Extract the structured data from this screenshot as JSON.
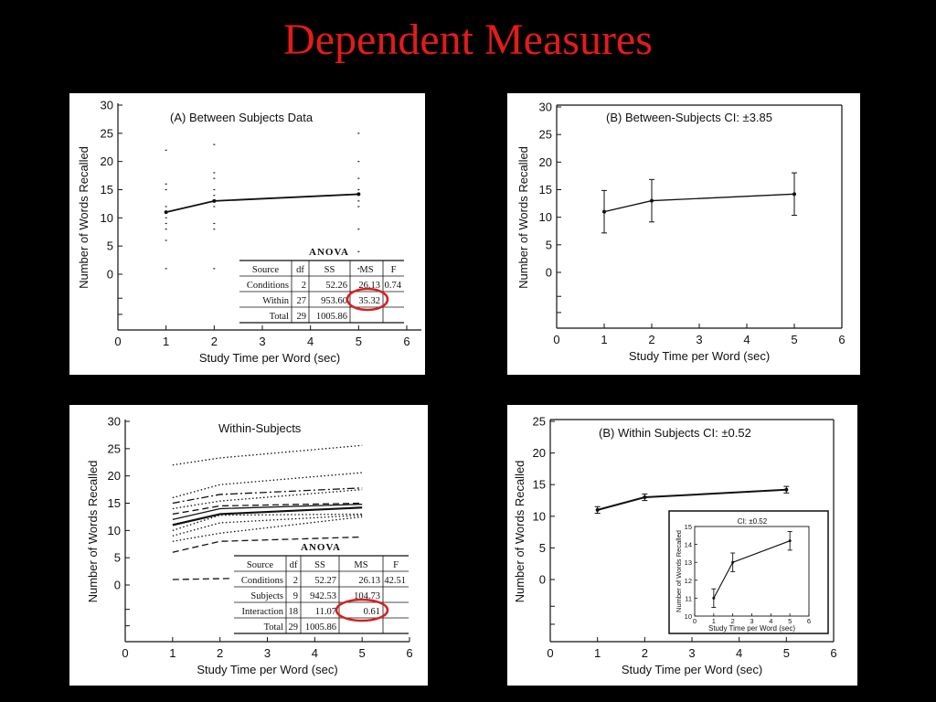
{
  "slide": {
    "title": "Dependent Measures",
    "title_color": "#e31b1b",
    "background": "#000000",
    "highlight_color": "#d62020"
  },
  "chart_data": [
    {
      "id": "A",
      "type": "line",
      "title": "(A) Between Subjects Data",
      "xlabel": "Study Time per Word (sec)",
      "ylabel": "Number of Words Recalled",
      "xlim": [
        0,
        6
      ],
      "ylim": [
        0,
        30
      ],
      "x_ticks": [
        0,
        1,
        2,
        3,
        4,
        5,
        6
      ],
      "y_ticks": [
        0,
        5,
        10,
        15,
        20,
        25,
        30
      ],
      "x": [
        1,
        2,
        5
      ],
      "series": [
        {
          "values": [
            11,
            13,
            14.2
          ]
        }
      ],
      "scatter_points": [
        [
          1,
          22
        ],
        [
          1,
          16
        ],
        [
          1,
          15
        ],
        [
          1,
          12
        ],
        [
          1,
          11
        ],
        [
          1,
          10
        ],
        [
          1,
          9
        ],
        [
          1,
          8
        ],
        [
          1,
          6
        ],
        [
          1,
          1
        ],
        [
          2,
          23
        ],
        [
          2,
          18
        ],
        [
          2,
          17
        ],
        [
          2,
          15
        ],
        [
          2,
          14
        ],
        [
          2,
          13
        ],
        [
          2,
          12
        ],
        [
          2,
          9
        ],
        [
          2,
          8
        ],
        [
          2,
          1
        ],
        [
          5,
          25
        ],
        [
          5,
          20
        ],
        [
          5,
          17
        ],
        [
          5,
          15
        ],
        [
          5,
          14
        ],
        [
          5,
          13
        ],
        [
          5,
          12
        ],
        [
          5,
          8
        ],
        [
          5,
          4
        ],
        [
          5,
          1
        ]
      ],
      "anova": {
        "title": "ANOVA",
        "headers": [
          "Source",
          "df",
          "SS",
          "MS",
          "F"
        ],
        "rows": [
          [
            "Conditions",
            "2",
            "52.26",
            "26.13",
            "0.74"
          ],
          [
            "Within",
            "27",
            "953.60",
            "35.32",
            ""
          ],
          [
            "Total",
            "29",
            "1005.86",
            "",
            ""
          ]
        ],
        "highlight": "35.32"
      }
    },
    {
      "id": "B1",
      "type": "line",
      "title": "(B) Between-Subjects CI: ±3.85",
      "xlabel": "Study Time per Word (sec)",
      "ylabel": "Number of Words Recalled",
      "xlim": [
        0,
        6
      ],
      "ylim": [
        0,
        30
      ],
      "x_ticks": [
        0,
        1,
        2,
        3,
        4,
        5,
        6
      ],
      "y_ticks": [
        0,
        5,
        10,
        15,
        20,
        25,
        30
      ],
      "x": [
        1,
        2,
        5
      ],
      "series": [
        {
          "values": [
            11,
            13,
            14.2
          ],
          "error": [
            3.85,
            3.85,
            3.85
          ]
        }
      ]
    },
    {
      "id": "W",
      "type": "line",
      "title": "Within-Subjects",
      "xlabel": "Study Time per Word (sec)",
      "ylabel": "Number of Words Recalled",
      "xlim": [
        0,
        6
      ],
      "ylim": [
        0,
        30
      ],
      "x_ticks": [
        0,
        1,
        2,
        3,
        4,
        5,
        6
      ],
      "y_ticks": [
        0,
        5,
        10,
        15,
        20,
        25,
        30
      ],
      "x": [
        1,
        2,
        5
      ],
      "series": [
        {
          "values": [
            22,
            23.3,
            25.6
          ],
          "style": "dot"
        },
        {
          "values": [
            16,
            18.4,
            20.6
          ],
          "style": "dot"
        },
        {
          "values": [
            15,
            16.6,
            17.8
          ],
          "style": "dashdot"
        },
        {
          "values": [
            14,
            15.4,
            17.5
          ],
          "style": "dot"
        },
        {
          "values": [
            13,
            14.5,
            15
          ],
          "style": "dash"
        },
        {
          "values": [
            11,
            13,
            14.2
          ],
          "style": "solid-bold"
        },
        {
          "values": [
            12,
            14,
            14.8
          ],
          "style": "solid"
        },
        {
          "values": [
            10,
            12.8,
            13
          ],
          "style": "dot"
        },
        {
          "values": [
            9,
            11.4,
            12.8
          ],
          "style": "dot"
        },
        {
          "values": [
            8,
            9.5,
            12.5
          ],
          "style": "dot"
        },
        {
          "values": [
            6,
            8,
            8.8
          ],
          "style": "dash"
        },
        {
          "values": [
            1,
            1.2,
            null
          ],
          "style": "dash"
        }
      ],
      "anova": {
        "title": "ANOVA",
        "headers": [
          "Source",
          "df",
          "SS",
          "MS",
          "F"
        ],
        "rows": [
          [
            "Conditions",
            "2",
            "52.27",
            "26.13",
            "42.51"
          ],
          [
            "Subjects",
            "9",
            "942.53",
            "104.73",
            ""
          ],
          [
            "Interaction",
            "18",
            "11.07",
            "0.61",
            ""
          ],
          [
            "Total",
            "29",
            "1005.86",
            "",
            ""
          ]
        ],
        "highlight": "0.61"
      }
    },
    {
      "id": "B2",
      "type": "line",
      "title": "(B) Within Subjects CI: ±0.52",
      "xlabel": "Study Time per Word (sec)",
      "ylabel": "Number of Words Recalled",
      "xlim": [
        0,
        6
      ],
      "ylim": [
        0,
        25
      ],
      "x_ticks": [
        0,
        1,
        2,
        3,
        4,
        5,
        6
      ],
      "y_ticks": [
        0,
        5,
        10,
        15,
        20,
        25
      ],
      "x": [
        1,
        2,
        5
      ],
      "series": [
        {
          "values": [
            11,
            13,
            14.2
          ],
          "error": [
            0.52,
            0.52,
            0.52
          ]
        }
      ],
      "inset": {
        "title": "CI: ±0.52",
        "xlabel": "Study Time per Word (sec)",
        "ylabel": "Number of Words Recalled",
        "xlim": [
          0,
          6
        ],
        "ylim": [
          10,
          15
        ],
        "x_ticks": [
          0,
          1,
          2,
          3,
          4,
          5,
          6
        ],
        "y_ticks": [
          10,
          11,
          12,
          13,
          14,
          15
        ],
        "x": [
          1,
          2,
          5
        ],
        "values": [
          11,
          13,
          14.2
        ],
        "error": [
          0.52,
          0.52,
          0.52
        ]
      }
    }
  ]
}
